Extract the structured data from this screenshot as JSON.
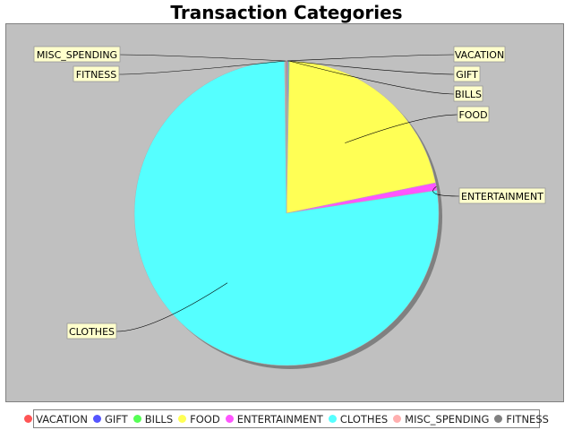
{
  "chart_data": {
    "type": "pie",
    "title": "Transaction Categories",
    "legend_position": "bottom",
    "slices": [
      {
        "label": "VACATION",
        "value": 0.1,
        "color": "#ff5555"
      },
      {
        "label": "GIFT",
        "value": 0.1,
        "color": "#5555ff"
      },
      {
        "label": "BILLS",
        "value": 0.1,
        "color": "#55ff55"
      },
      {
        "label": "FOOD",
        "value": 21.5,
        "color": "#ffff55"
      },
      {
        "label": "ENTERTAINMENT",
        "value": 0.8,
        "color": "#ff55ff"
      },
      {
        "label": "CLOTHES",
        "value": 77.2,
        "color": "#55ffff"
      },
      {
        "label": "MISC_SPENDING",
        "value": 0.1,
        "color": "#ffafaf"
      },
      {
        "label": "FITNESS",
        "value": 0.1,
        "color": "#808080"
      }
    ]
  }
}
